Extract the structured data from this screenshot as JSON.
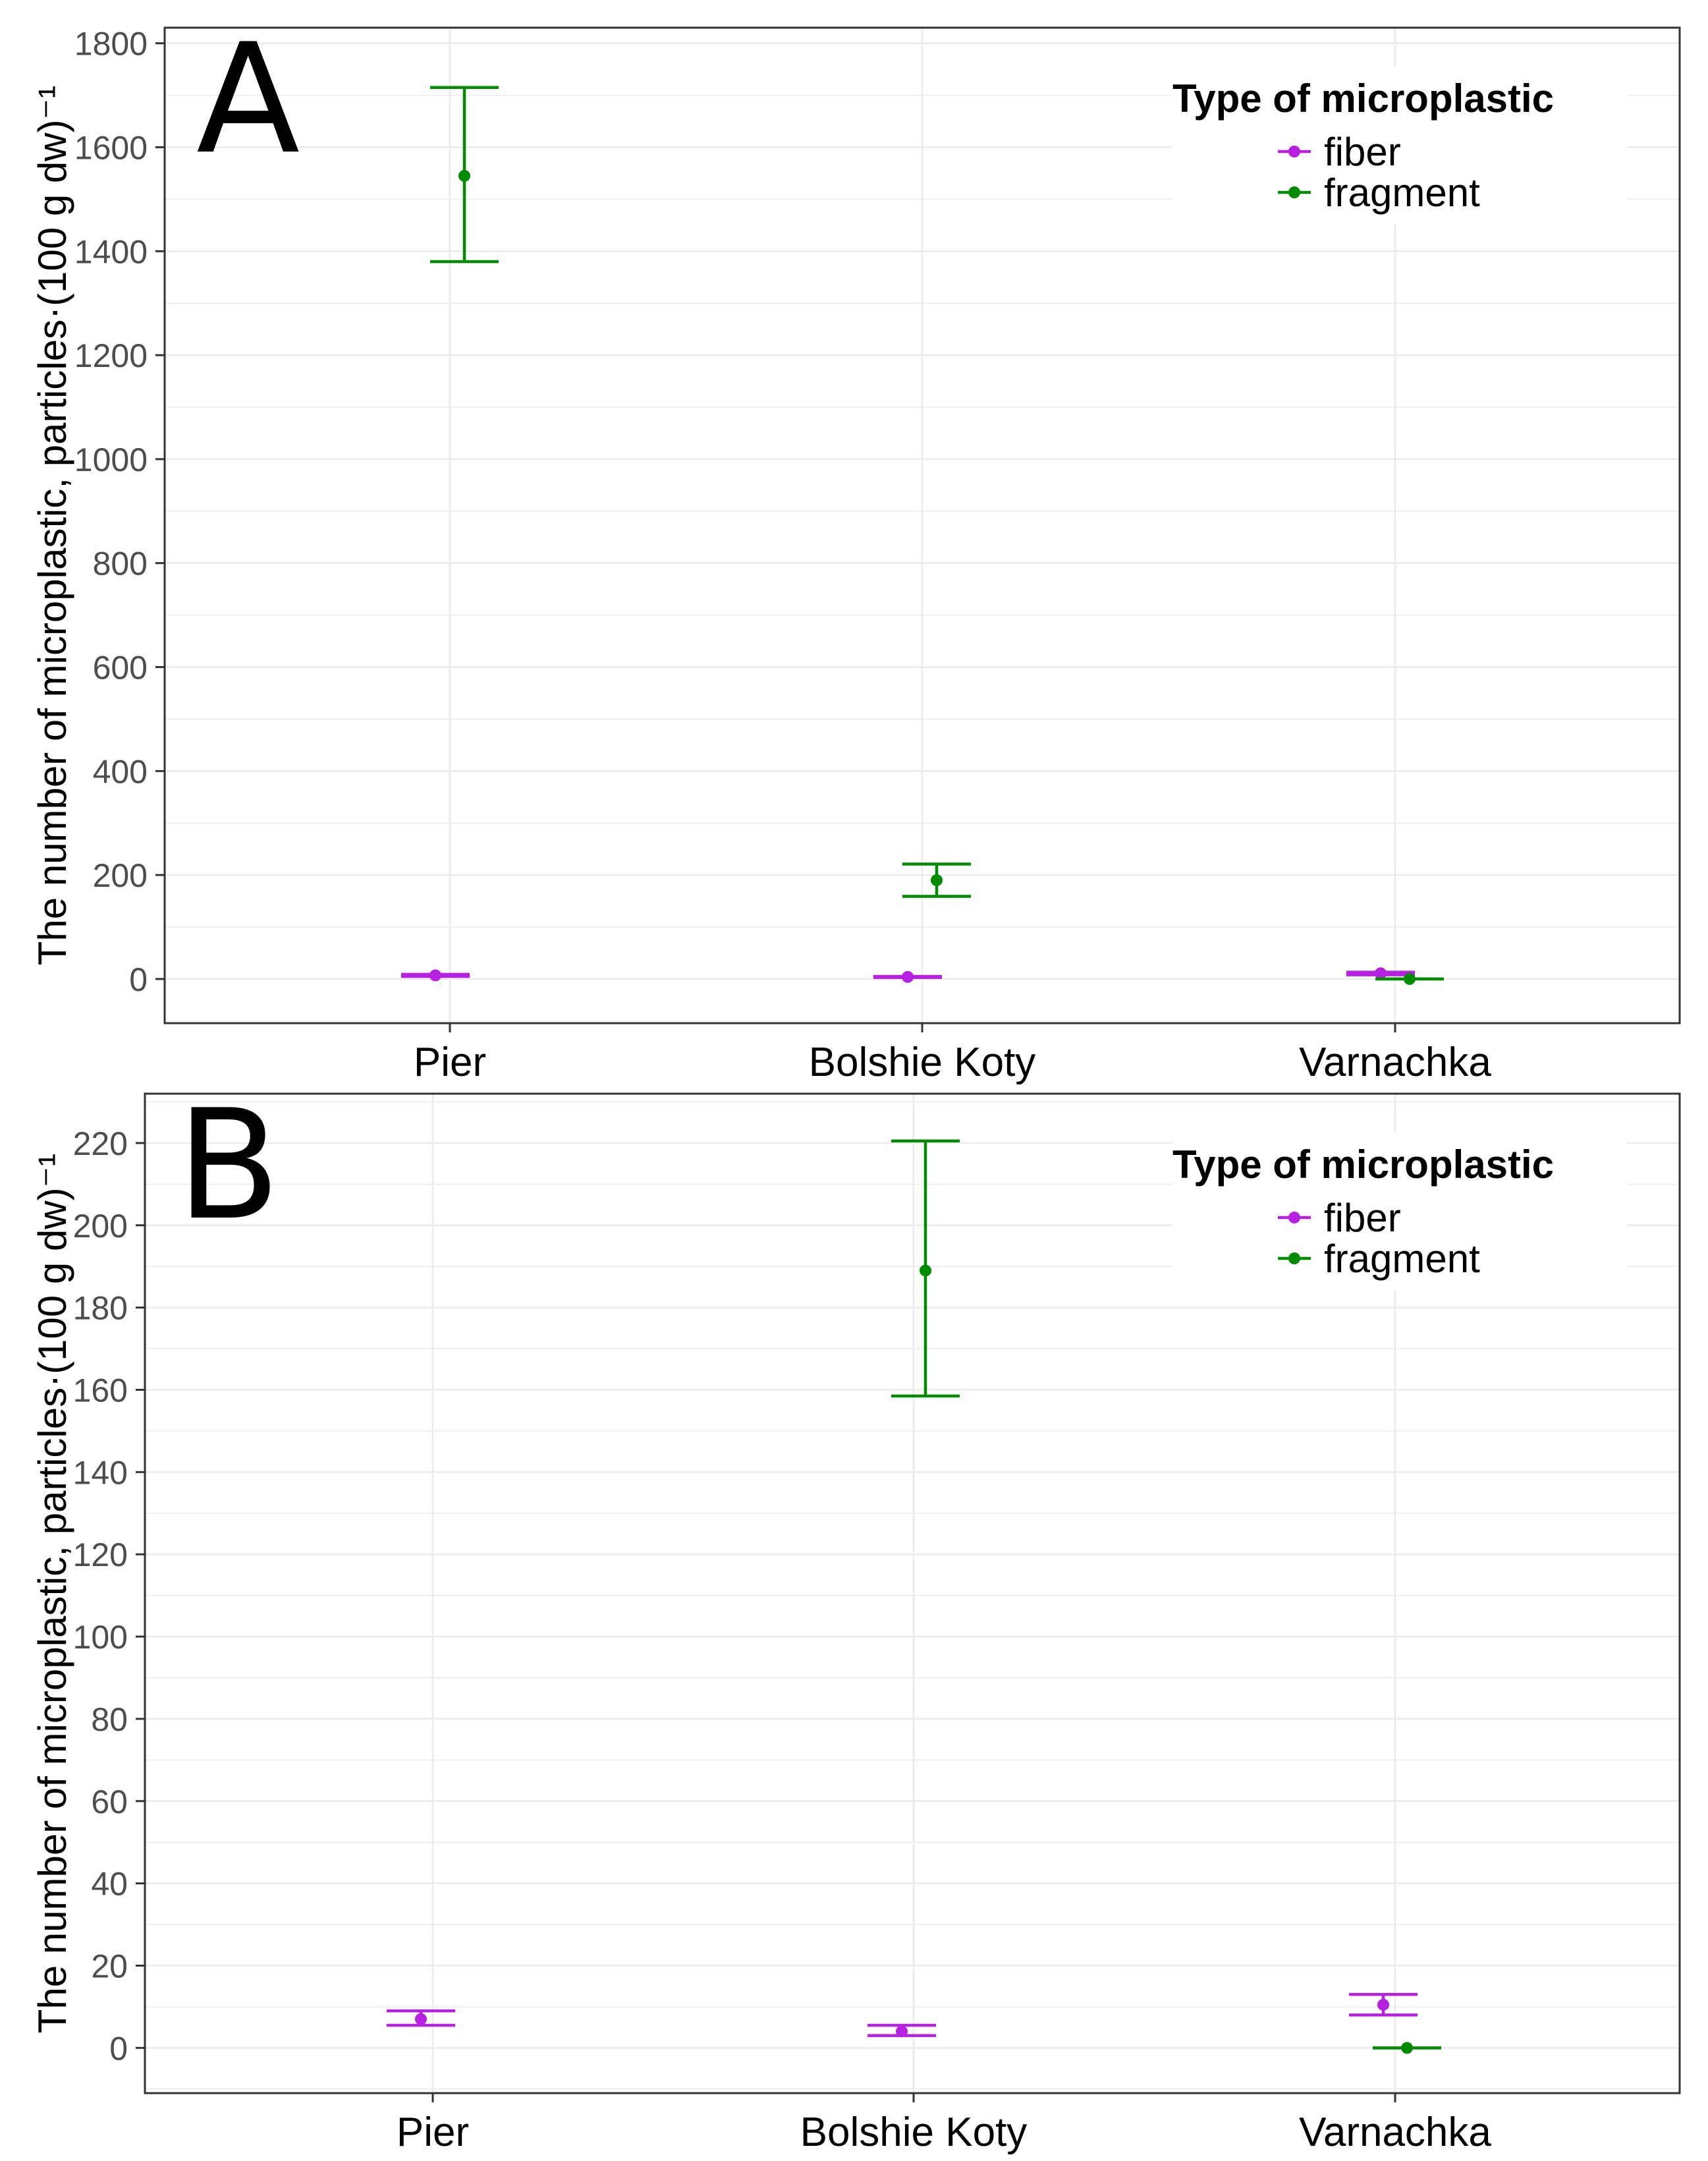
{
  "colors": {
    "fiber": "#b620e0",
    "fragment": "#008b00"
  },
  "legend": {
    "title": "Type of microplastic",
    "entries": [
      {
        "key": "fiber",
        "label": "fiber"
      },
      {
        "key": "fragment",
        "label": "fragment"
      }
    ]
  },
  "chart_data": [
    {
      "panel": "A",
      "type": "scatter",
      "title": "",
      "ylabel": "The number of microplastic, particles·(100 g dw)⁻¹",
      "xlabel": "",
      "categories": [
        "Pier",
        "Bolshie Koty",
        "Varnachka"
      ],
      "ylim": [
        -85,
        1830
      ],
      "yticks": [
        0,
        200,
        400,
        600,
        800,
        1000,
        1200,
        1400,
        1600,
        1800
      ],
      "grid": true,
      "legend_position": "top-right",
      "series": [
        {
          "name": "fiber",
          "mean": [
            7,
            4,
            11
          ],
          "lower": [
            5,
            3,
            8
          ],
          "upper": [
            9,
            5,
            13
          ]
        },
        {
          "name": "fragment",
          "mean": [
            1545,
            190,
            0
          ],
          "lower": [
            1380,
            159,
            0
          ],
          "upper": [
            1715,
            221,
            0
          ]
        }
      ]
    },
    {
      "panel": "B",
      "type": "scatter",
      "title": "",
      "ylabel": "The number of microplastic, particles·(100 g dw)⁻¹",
      "xlabel": "",
      "categories": [
        "Pier",
        "Bolshie Koty",
        "Varnachka"
      ],
      "ylim": [
        -11,
        232
      ],
      "yticks": [
        0,
        20,
        40,
        60,
        80,
        100,
        120,
        140,
        160,
        180,
        200,
        220
      ],
      "grid": true,
      "legend_position": "top-right",
      "series": [
        {
          "name": "fiber",
          "mean": [
            7,
            4,
            10.5
          ],
          "lower": [
            5.5,
            3,
            8
          ],
          "upper": [
            9,
            5.5,
            13
          ]
        },
        {
          "name": "fragment",
          "mean": [
            null,
            189,
            0
          ],
          "lower": [
            null,
            158.5,
            0
          ],
          "upper": [
            null,
            220.5,
            0
          ]
        }
      ]
    }
  ]
}
